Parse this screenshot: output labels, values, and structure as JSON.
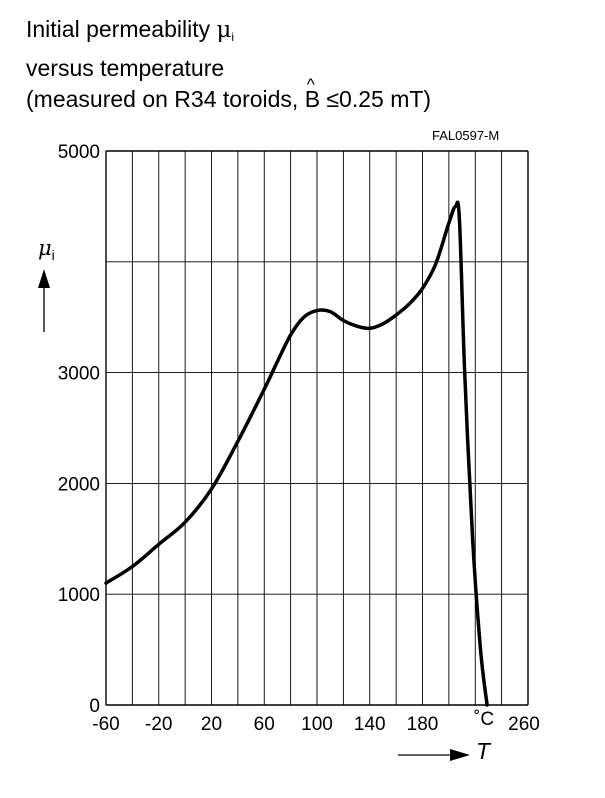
{
  "title": {
    "line1_text": "Initial permeability ",
    "line1_symbol": "μ",
    "line1_sub": "i",
    "line2": "versus temperature",
    "line3_prefix": "(measured on R34 toroids, ",
    "line3_b": "B",
    "line3_hat": "^",
    "line3_suffix": " ≤0.25 mT)"
  },
  "figure_code": "FAL0597-M",
  "chart_data": {
    "type": "line",
    "ylabel_symbol": "μ",
    "ylabel_sub": "i",
    "xlabel": "T",
    "x_unit": "˚C",
    "xlim": [
      -60,
      260
    ],
    "ylim": [
      0,
      5000
    ],
    "x_grid_step": 20,
    "y_grid_step": 1000,
    "grid": true,
    "x_tick_labels": [
      "-60",
      "-20",
      "20",
      "60",
      "100",
      "140",
      "180",
      "260"
    ],
    "x_tick_values": [
      -60,
      -20,
      20,
      60,
      100,
      140,
      180,
      260
    ],
    "y_tick_labels": [
      "0",
      "1000",
      "2000",
      "3000",
      "5000"
    ],
    "y_tick_values": [
      0,
      1000,
      2000,
      3000,
      5000
    ],
    "series": [
      {
        "color": "#000000",
        "x": [
          -60,
          -40,
          -20,
          0,
          20,
          40,
          60,
          70,
          80,
          90,
          100,
          110,
          120,
          130,
          140,
          150,
          160,
          170,
          180,
          190,
          200,
          205,
          208,
          212,
          218,
          224,
          229
        ],
        "y": [
          1100,
          1250,
          1450,
          1650,
          1950,
          2380,
          2850,
          3100,
          3340,
          3500,
          3560,
          3550,
          3470,
          3420,
          3400,
          3440,
          3520,
          3620,
          3760,
          3980,
          4350,
          4500,
          4380,
          3000,
          1500,
          500,
          0
        ]
      }
    ]
  }
}
